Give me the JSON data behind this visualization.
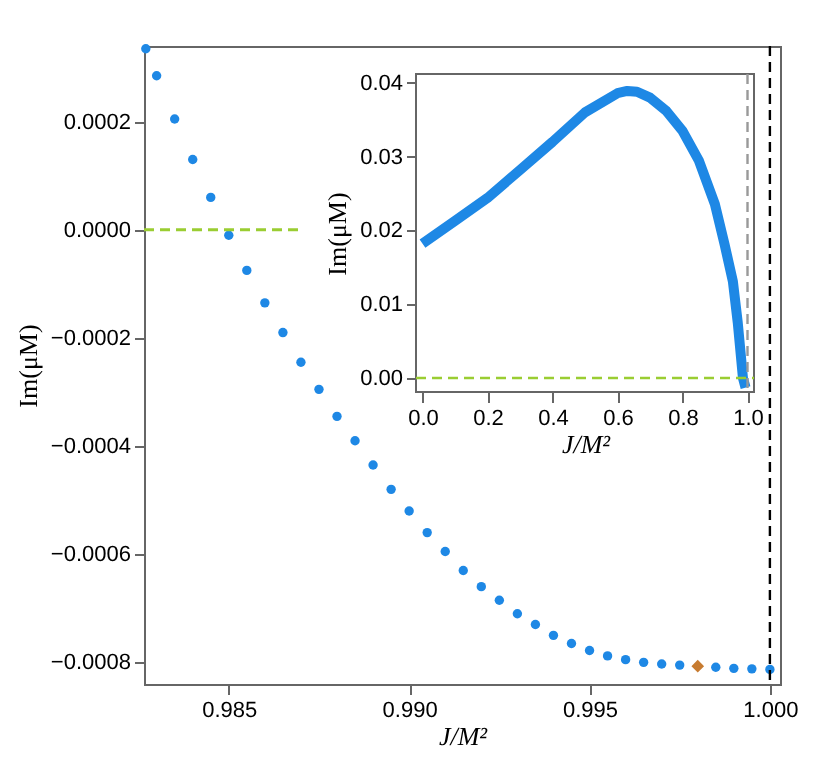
{
  "chart_data": [
    {
      "type": "scatter",
      "xlabel": "J/M²",
      "ylabel": "Im(μM)",
      "xlim": [
        0.98265,
        1.00028
      ],
      "ylim": [
        -0.00084,
        0.00034
      ],
      "xticks": [
        {
          "value": 0.985,
          "label": "0.985"
        },
        {
          "value": 0.99,
          "label": "0.990"
        },
        {
          "value": 0.995,
          "label": "0.995"
        },
        {
          "value": 1.0,
          "label": "1.000"
        }
      ],
      "yticks": [
        {
          "value": 0.0002,
          "label": "0.0002"
        },
        {
          "value": 0,
          "label": "0.0000"
        },
        {
          "value": -0.0002,
          "label": "−0.0002"
        },
        {
          "value": -0.0004,
          "label": "−0.0004"
        },
        {
          "value": -0.0006,
          "label": "−0.0006"
        },
        {
          "value": -0.0008,
          "label": "−0.0008"
        }
      ],
      "marker": "circle",
      "grid": false,
      "series": [
        {
          "color": "#1e88e5",
          "x": [
            0.9827,
            0.983,
            0.9835,
            0.984,
            0.9845,
            0.985,
            0.9855,
            0.986,
            0.9865,
            0.987,
            0.9875,
            0.988,
            0.9885,
            0.989,
            0.9895,
            0.99,
            0.9905,
            0.991,
            0.9915,
            0.992,
            0.9925,
            0.993,
            0.9935,
            0.994,
            0.9945,
            0.995,
            0.9955,
            0.996,
            0.9965,
            0.997,
            0.9975,
            0.998,
            0.9985,
            0.999,
            0.9995,
            1.0
          ],
          "values": [
            0.000335,
            0.000285,
            0.000205,
            0.00013,
            6e-05,
            -1e-05,
            -7.5e-05,
            -0.000135,
            -0.00019,
            -0.000245,
            -0.000295,
            -0.000345,
            -0.00039,
            -0.000435,
            -0.00048,
            -0.00052,
            -0.00056,
            -0.000595,
            -0.00063,
            -0.00066,
            -0.000685,
            -0.00071,
            -0.00073,
            -0.00075,
            -0.000765,
            -0.000778,
            -0.000788,
            -0.000795,
            -0.0008,
            -0.000803,
            -0.000805,
            null,
            -0.000809,
            -0.000811,
            -0.000812,
            -0.000813
          ]
        },
        {
          "type": "scatter",
          "marker": "diamond",
          "color": "#c77b30",
          "x": [
            0.998
          ],
          "values": [
            -0.000807
          ]
        },
        {
          "type": "line",
          "marker": "none",
          "line_style": "dashed",
          "color": "#9acd32",
          "x": [
            0.98265,
            0.987
          ],
          "values": [
            0,
            0
          ]
        }
      ],
      "ref_lines": [
        {
          "axis": "x",
          "value": 1.0,
          "color": "#000000",
          "line_style": "dashed"
        }
      ]
    },
    {
      "type": "line",
      "xlabel": "J/M²",
      "ylabel": "Im(μM)",
      "xlim": [
        -0.02,
        1.02
      ],
      "ylim": [
        -0.0019,
        0.0412
      ],
      "xticks": [
        {
          "value": 0,
          "label": "0.0"
        },
        {
          "value": 0.2,
          "label": "0.2"
        },
        {
          "value": 0.4,
          "label": "0.4"
        },
        {
          "value": 0.6,
          "label": "0.6"
        },
        {
          "value": 0.8,
          "label": "0.8"
        },
        {
          "value": 1.0,
          "label": "1.0"
        }
      ],
      "yticks": [
        {
          "value": 0,
          "label": "0.00"
        },
        {
          "value": 0.01,
          "label": "0.01"
        },
        {
          "value": 0.02,
          "label": "0.02"
        },
        {
          "value": 0.03,
          "label": "0.03"
        },
        {
          "value": 0.04,
          "label": "0.04"
        }
      ],
      "grid": false,
      "series": [
        {
          "color": "#1e88e5",
          "x": [
            0,
            0.1,
            0.2,
            0.3,
            0.4,
            0.5,
            0.6,
            0.63,
            0.66,
            0.7,
            0.75,
            0.8,
            0.85,
            0.9,
            0.93,
            0.955,
            0.97,
            0.986,
            0.994
          ],
          "values": [
            0.0182,
            0.0213,
            0.0244,
            0.0282,
            0.032,
            0.036,
            0.0386,
            0.0389,
            0.0388,
            0.038,
            0.0362,
            0.0335,
            0.0295,
            0.0235,
            0.018,
            0.0131,
            0.0075,
            0.0,
            -0.0013
          ]
        }
      ],
      "ref_lines": [
        {
          "axis": "x",
          "value": 1.0,
          "color": "#999999",
          "line_style": "dashed"
        },
        {
          "axis": "y",
          "value": 0,
          "color": "#9acd32",
          "line_style": "dashed"
        }
      ]
    }
  ]
}
